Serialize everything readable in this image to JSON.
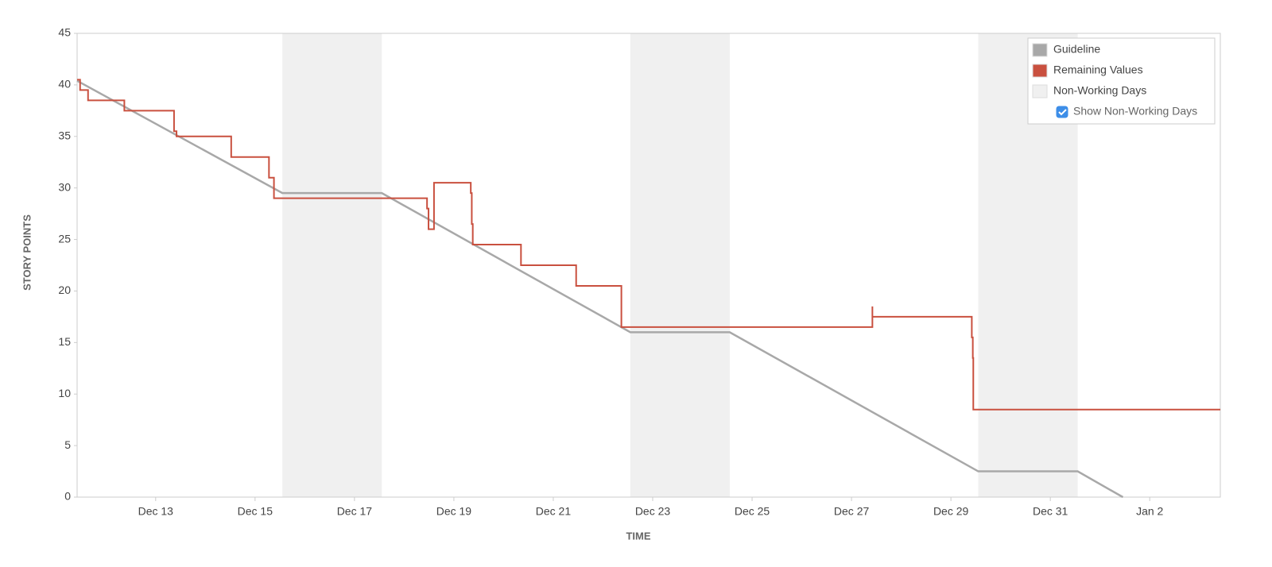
{
  "chart_data": {
    "type": "line",
    "y_label": "STORY POINTS",
    "x_label": "TIME",
    "xlim": [
      11.42,
      34.42
    ],
    "ylim": [
      0,
      45
    ],
    "yticks": [
      0,
      5,
      10,
      15,
      20,
      25,
      30,
      35,
      40,
      45
    ],
    "xticks": [
      {
        "value": 13,
        "label": "Dec 13"
      },
      {
        "value": 15,
        "label": "Dec 15"
      },
      {
        "value": 17,
        "label": "Dec 17"
      },
      {
        "value": 19,
        "label": "Dec 19"
      },
      {
        "value": 21,
        "label": "Dec 21"
      },
      {
        "value": 23,
        "label": "Dec 23"
      },
      {
        "value": 25,
        "label": "Dec 25"
      },
      {
        "value": 27,
        "label": "Dec 27"
      },
      {
        "value": 29,
        "label": "Dec 29"
      },
      {
        "value": 31,
        "label": "Dec 31"
      },
      {
        "value": 33,
        "label": "Jan 2"
      }
    ],
    "bands": {
      "name": "Non-Working Days",
      "color": "#f0f0f0",
      "ranges": [
        [
          15.55,
          17.55
        ],
        [
          22.55,
          24.55
        ],
        [
          29.55,
          31.55
        ]
      ]
    },
    "series": [
      {
        "name": "Guideline",
        "color": "#a8a8a8",
        "x": [
          11.42,
          15.55,
          17.55,
          22.55,
          24.55,
          29.55,
          31.55,
          32.46
        ],
        "values": [
          40.4,
          29.5,
          29.5,
          16,
          16,
          2.5,
          2.5,
          0
        ]
      },
      {
        "name": "Remaining Values",
        "color": "#c9503f",
        "x": [
          11.42,
          11.48,
          11.48,
          11.64,
          11.64,
          12.37,
          12.37,
          13.37,
          13.37,
          13.42,
          13.42,
          14.52,
          14.52,
          15.28,
          15.28,
          15.38,
          15.38,
          18.46,
          18.46,
          18.49,
          18.49,
          18.6,
          18.6,
          19.34,
          19.34,
          19.36,
          19.36,
          19.38,
          19.38,
          20.35,
          20.35,
          21.46,
          21.46,
          22.37,
          22.37,
          27.42,
          27.42,
          27.42,
          27.43,
          29.42,
          29.42,
          29.44,
          29.44,
          29.45,
          29.45,
          34.42
        ],
        "values": [
          40.5,
          40.5,
          39.5,
          39.5,
          38.5,
          38.5,
          37.5,
          37.5,
          35.5,
          35.5,
          35,
          35,
          33,
          33,
          31,
          31,
          29,
          29,
          28,
          28,
          26,
          26,
          30.5,
          30.5,
          29.5,
          29.5,
          26.5,
          26.5,
          24.5,
          24.5,
          22.5,
          22.5,
          20.5,
          20.5,
          16.5,
          16.5,
          18.5,
          17.5,
          17.5,
          17.5,
          15.5,
          15.5,
          13.5,
          13.5,
          8.5,
          8.5
        ]
      }
    ],
    "legend": "top-right",
    "toggle": {
      "label": "Show Non-Working Days",
      "checked": true
    }
  }
}
